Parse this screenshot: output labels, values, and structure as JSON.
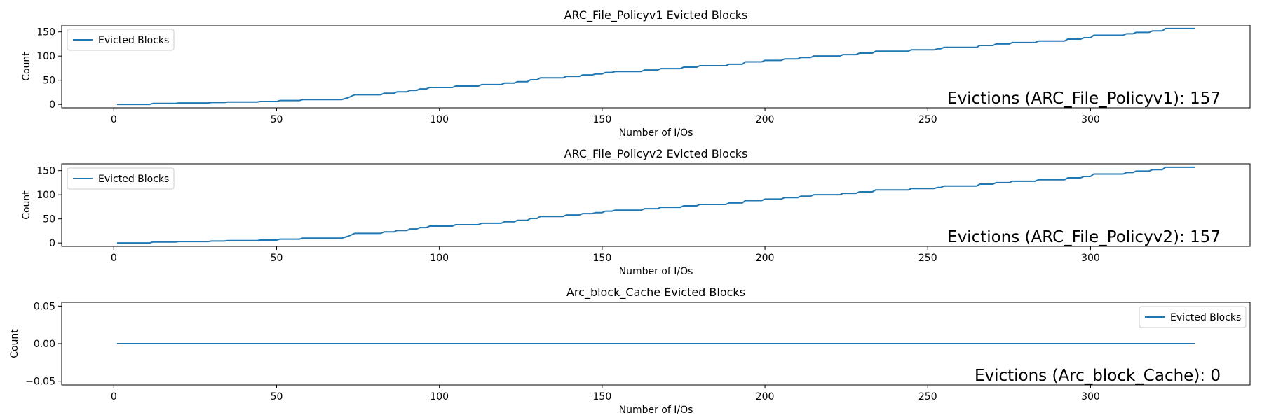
{
  "chart_data": [
    {
      "type": "line",
      "title": "ARC_File_Policyv1 Evicted Blocks",
      "xlabel": "Number of I/Os",
      "ylabel": "Count",
      "xlim": [
        -16,
        349
      ],
      "ylim": [
        -7,
        164
      ],
      "xticks": [
        0,
        50,
        100,
        150,
        200,
        250,
        300
      ],
      "yticks": [
        0,
        50,
        100,
        150
      ],
      "ytick_labels": [
        "0",
        "50",
        "100",
        "150"
      ],
      "legend": {
        "entry": "Evicted Blocks",
        "position": "upper-left"
      },
      "annotation": "Evictions (ARC_File_Policyv1): 157",
      "series": [
        {
          "name": "Evicted Blocks",
          "color": "#1f77b4",
          "x": [
            1,
            11,
            12,
            19,
            20,
            29,
            30,
            34,
            35,
            44,
            45,
            50,
            51,
            57,
            58,
            70,
            72,
            73,
            74,
            82,
            83,
            86,
            87,
            90,
            91,
            93,
            94,
            96,
            97,
            104,
            105,
            112,
            113,
            119,
            120,
            123,
            124,
            127,
            128,
            130,
            131,
            138,
            139,
            143,
            144,
            147,
            148,
            150,
            151,
            153,
            154,
            162,
            163,
            167,
            168,
            174,
            175,
            179,
            180,
            188,
            189,
            193,
            194,
            199,
            200,
            205,
            206,
            210,
            211,
            214,
            215,
            223,
            224,
            228,
            229,
            233,
            234,
            244,
            245,
            252,
            253,
            254,
            255,
            265,
            266,
            270,
            271,
            275,
            276,
            283,
            284,
            292,
            293,
            297,
            298,
            300,
            301,
            310,
            311,
            313,
            314,
            318,
            319,
            322,
            323,
            332
          ],
          "y": [
            0,
            0,
            2,
            2,
            3,
            3,
            4,
            4,
            5,
            5,
            6,
            6,
            8,
            8,
            10,
            10,
            14,
            17,
            20,
            20,
            23,
            23,
            26,
            26,
            29,
            29,
            32,
            32,
            35,
            35,
            38,
            38,
            41,
            41,
            44,
            44,
            47,
            47,
            51,
            51,
            55,
            55,
            58,
            58,
            61,
            61,
            63,
            63,
            66,
            66,
            68,
            68,
            71,
            71,
            74,
            74,
            77,
            77,
            80,
            80,
            83,
            83,
            88,
            88,
            91,
            91,
            94,
            94,
            97,
            97,
            100,
            100,
            103,
            103,
            106,
            106,
            110,
            110,
            113,
            113,
            115,
            115,
            118,
            118,
            122,
            122,
            125,
            125,
            128,
            128,
            131,
            131,
            135,
            135,
            138,
            138,
            143,
            143,
            146,
            146,
            149,
            149,
            152,
            152,
            157,
            157
          ]
        }
      ]
    },
    {
      "type": "line",
      "title": "ARC_File_Policyv2 Evicted Blocks",
      "xlabel": "Number of I/Os",
      "ylabel": "Count",
      "xlim": [
        -16,
        349
      ],
      "ylim": [
        -7,
        164
      ],
      "xticks": [
        0,
        50,
        100,
        150,
        200,
        250,
        300
      ],
      "yticks": [
        0,
        50,
        100,
        150
      ],
      "ytick_labels": [
        "0",
        "50",
        "100",
        "150"
      ],
      "legend": {
        "entry": "Evicted Blocks",
        "position": "upper-left"
      },
      "annotation": "Evictions (ARC_File_Policyv2): 157",
      "series": [
        {
          "name": "Evicted Blocks",
          "color": "#1f77b4",
          "x": [
            1,
            11,
            12,
            19,
            20,
            29,
            30,
            34,
            35,
            44,
            45,
            50,
            51,
            57,
            58,
            70,
            72,
            73,
            74,
            82,
            83,
            86,
            87,
            90,
            91,
            93,
            94,
            96,
            97,
            104,
            105,
            112,
            113,
            119,
            120,
            123,
            124,
            127,
            128,
            130,
            131,
            138,
            139,
            143,
            144,
            147,
            148,
            150,
            151,
            153,
            154,
            162,
            163,
            167,
            168,
            174,
            175,
            179,
            180,
            188,
            189,
            193,
            194,
            199,
            200,
            205,
            206,
            210,
            211,
            214,
            215,
            223,
            224,
            228,
            229,
            233,
            234,
            244,
            245,
            252,
            253,
            254,
            255,
            265,
            266,
            270,
            271,
            275,
            276,
            283,
            284,
            292,
            293,
            297,
            298,
            300,
            301,
            310,
            311,
            313,
            314,
            318,
            319,
            322,
            323,
            332
          ],
          "y": [
            0,
            0,
            2,
            2,
            3,
            3,
            4,
            4,
            5,
            5,
            6,
            6,
            8,
            8,
            10,
            10,
            14,
            17,
            20,
            20,
            23,
            23,
            26,
            26,
            29,
            29,
            32,
            32,
            35,
            35,
            38,
            38,
            41,
            41,
            44,
            44,
            47,
            47,
            51,
            51,
            55,
            55,
            58,
            58,
            61,
            61,
            63,
            63,
            66,
            66,
            68,
            68,
            71,
            71,
            74,
            74,
            77,
            77,
            80,
            80,
            83,
            83,
            88,
            88,
            91,
            91,
            94,
            94,
            97,
            97,
            100,
            100,
            103,
            103,
            106,
            106,
            110,
            110,
            113,
            113,
            115,
            115,
            118,
            118,
            122,
            122,
            125,
            125,
            128,
            128,
            131,
            131,
            135,
            135,
            138,
            138,
            143,
            143,
            146,
            146,
            149,
            149,
            152,
            152,
            157,
            157
          ]
        }
      ]
    },
    {
      "type": "line",
      "title": "Arc_block_Cache Evicted Blocks",
      "xlabel": "Number of I/Os",
      "ylabel": "Count",
      "xlim": [
        -16,
        349
      ],
      "ylim": [
        -0.055,
        0.055
      ],
      "xticks": [
        0,
        50,
        100,
        150,
        200,
        250,
        300
      ],
      "yticks": [
        -0.05,
        0,
        0.05
      ],
      "ytick_labels": [
        "−0.05",
        "0.00",
        "0.05"
      ],
      "legend": {
        "entry": "Evicted Blocks",
        "position": "upper-right"
      },
      "annotation": "Evictions (Arc_block_Cache): 0",
      "series": [
        {
          "name": "Evicted Blocks",
          "color": "#1f77b4",
          "x": [
            1,
            332
          ],
          "y": [
            0,
            0
          ]
        }
      ]
    }
  ]
}
